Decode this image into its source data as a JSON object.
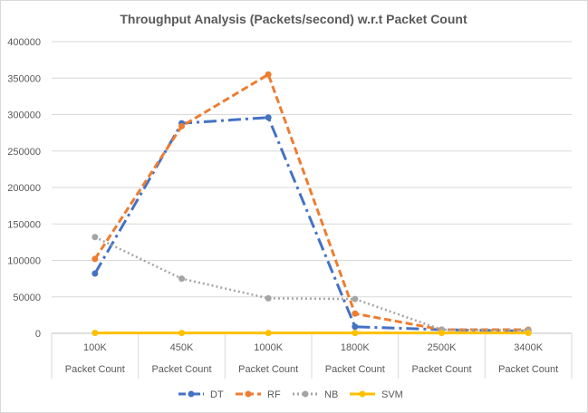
{
  "chart_data": {
    "type": "line",
    "title": "Throughput Analysis (Packets/second) w.r.t Packet Count",
    "xlabel": "",
    "ylabel": "",
    "categories": [
      "100K",
      "450K",
      "1000K",
      "1800K",
      "2500K",
      "3400K"
    ],
    "category_group_label": "Packet Count",
    "ylim": [
      0,
      400000
    ],
    "yticks": [
      "0",
      "50000",
      "100000",
      "150000",
      "200000",
      "250000",
      "300000",
      "350000",
      "400000"
    ],
    "grid": true,
    "legend_position": "bottom",
    "series": [
      {
        "name": "DT",
        "color": "#4472C4",
        "dash": "long-dash-dot",
        "values": [
          82000,
          288000,
          296000,
          9000,
          5000,
          3000
        ]
      },
      {
        "name": "RF",
        "color": "#ED7D31",
        "dash": "dashed",
        "values": [
          102000,
          284000,
          355000,
          27000,
          5000,
          5000
        ]
      },
      {
        "name": "NB",
        "color": "#A5A5A5",
        "dash": "dotted",
        "values": [
          132000,
          75000,
          48000,
          47000,
          5000,
          4000
        ]
      },
      {
        "name": "SVM",
        "color": "#FFC000",
        "dash": "solid",
        "values": [
          500,
          500,
          500,
          500,
          500,
          500
        ]
      }
    ]
  }
}
